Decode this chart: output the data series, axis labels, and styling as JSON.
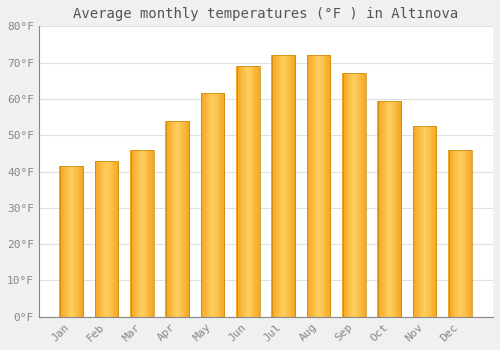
{
  "title": "Average monthly temperatures (°F ) in Altınova",
  "months": [
    "Jan",
    "Feb",
    "Mar",
    "Apr",
    "May",
    "Jun",
    "Jul",
    "Aug",
    "Sep",
    "Oct",
    "Nov",
    "Dec"
  ],
  "values": [
    41.5,
    43.0,
    46.0,
    54.0,
    61.5,
    69.0,
    72.0,
    72.0,
    67.0,
    59.5,
    52.5,
    46.0
  ],
  "bar_color_dark": "#F5A623",
  "bar_color_light": "#FFD060",
  "bar_edge_color": "#C8860A",
  "background_color": "#F0F0F0",
  "plot_bg_color": "#FFFFFF",
  "grid_color": "#E0E0E0",
  "tick_label_color": "#888888",
  "title_color": "#555555",
  "ylim": [
    0,
    80
  ],
  "yticks": [
    0,
    10,
    20,
    30,
    40,
    50,
    60,
    70,
    80
  ],
  "ytick_labels": [
    "0°F",
    "10°F",
    "20°F",
    "30°F",
    "40°F",
    "50°F",
    "60°F",
    "70°F",
    "80°F"
  ],
  "title_fontsize": 10,
  "tick_fontsize": 8
}
